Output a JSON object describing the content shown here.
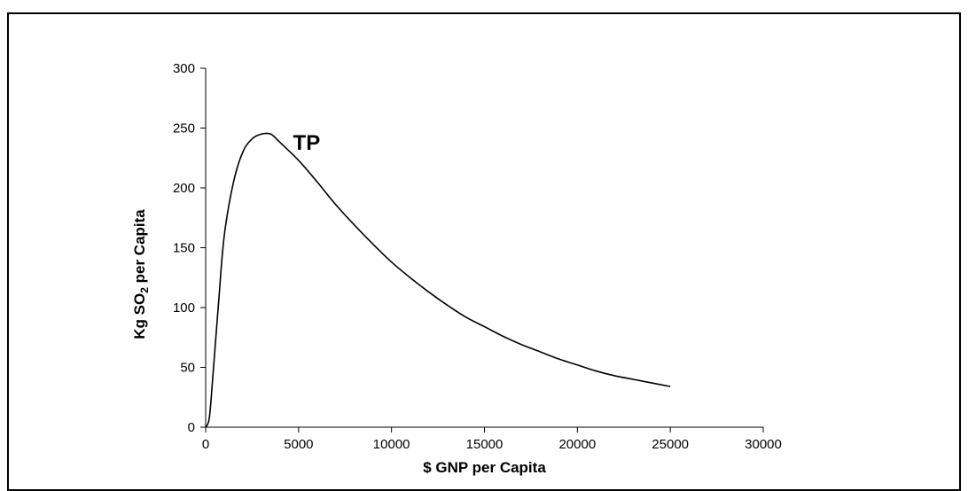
{
  "chart_data": {
    "type": "line",
    "title": "",
    "xlabel": "$ GNP per Capita",
    "ylabel_parts": {
      "pre": "Kg SO",
      "sub": "2",
      "post": " per Capita"
    },
    "xlim": [
      0,
      30000
    ],
    "ylim": [
      0,
      300
    ],
    "xticks": [
      0,
      5000,
      10000,
      15000,
      20000,
      25000,
      30000
    ],
    "yticks": [
      0,
      50,
      100,
      150,
      200,
      250,
      300
    ],
    "grid": false,
    "series": [
      {
        "x": [
          0,
          200,
          400,
          700,
          1000,
          1500,
          2000,
          2500,
          3000,
          3500,
          4000,
          5000,
          6000,
          7000,
          8000,
          9000,
          10000,
          11000,
          12000,
          13000,
          14000,
          15000,
          16000,
          17000,
          18000,
          19000,
          20000,
          21000,
          22000,
          23000,
          24000,
          25000
        ],
        "y": [
          0,
          8,
          45,
          105,
          160,
          205,
          230,
          241,
          245,
          245,
          238,
          223,
          205,
          186,
          169,
          153,
          138,
          125,
          113,
          102,
          92,
          84,
          76,
          69,
          63,
          57,
          52,
          47,
          43,
          40,
          37,
          34
        ],
        "color": "#000000"
      }
    ],
    "annotations": [
      {
        "text": "TP",
        "x": 4700,
        "y": 232
      }
    ]
  }
}
